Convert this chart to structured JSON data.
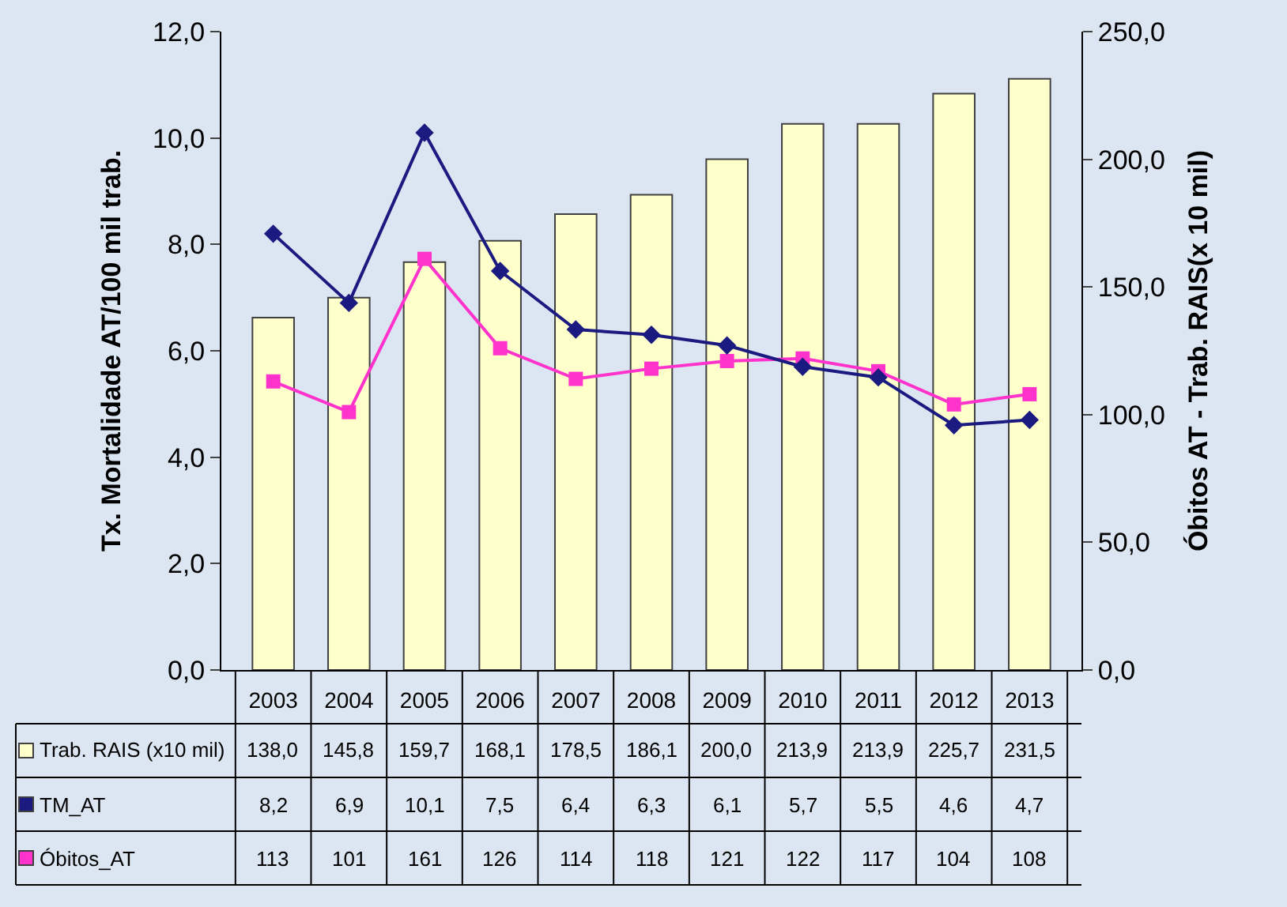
{
  "chart_data": {
    "type": "bar",
    "ylabel": "Tx. Mortalidade AT/100 mil trab.",
    "y2label": "Óbitos AT - Trab. RAIS(x 10 mil)",
    "categories": [
      "2003",
      "2004",
      "2005",
      "2006",
      "2007",
      "2008",
      "2009",
      "2010",
      "2011",
      "2012",
      "2013"
    ],
    "series": [
      {
        "name": "Trab. RAIS (x10 mil)",
        "axis": "y2",
        "color": "#ffffcc",
        "values": [
          138.0,
          145.8,
          159.7,
          168.1,
          178.5,
          186.1,
          200.0,
          213.9,
          213.9,
          225.7,
          231.5
        ],
        "value_labels": [
          "138,0",
          "145,8",
          "159,7",
          "168,1",
          "178,5",
          "186,1",
          "200,0",
          "213,9",
          "213,9",
          "225,7",
          "231,5"
        ]
      },
      {
        "name": "TM_AT",
        "type": "line",
        "color": "#1a1a80",
        "marker": "diamond",
        "values": [
          8.2,
          6.9,
          10.1,
          7.5,
          6.4,
          6.3,
          6.1,
          5.7,
          5.5,
          4.6,
          4.7
        ],
        "value_labels": [
          "8,2",
          "6,9",
          "10,1",
          "7,5",
          "6,4",
          "6,3",
          "6,1",
          "5,7",
          "5,5",
          "4,6",
          "4,7"
        ]
      },
      {
        "name": "Óbitos_AT",
        "type": "line",
        "axis": "y2",
        "color": "#ff33cc",
        "marker": "square",
        "values": [
          113,
          101,
          161,
          126,
          114,
          118,
          121,
          122,
          117,
          104,
          108
        ],
        "value_labels": [
          "113",
          "101",
          "161",
          "126",
          "114",
          "118",
          "121",
          "122",
          "117",
          "104",
          "108"
        ]
      }
    ],
    "ylim": [
      0,
      12
    ],
    "yticks": [
      {
        "value": 0,
        "label": "0,0"
      },
      {
        "value": 2,
        "label": "2,0"
      },
      {
        "value": 4,
        "label": "4,0"
      },
      {
        "value": 6,
        "label": "6,0"
      },
      {
        "value": 8,
        "label": "8,0"
      },
      {
        "value": 10,
        "label": "10,0"
      },
      {
        "value": 12,
        "label": "12,0"
      }
    ],
    "y2lim": [
      0,
      250
    ],
    "y2ticks": [
      {
        "value": 0,
        "label": "0,0"
      },
      {
        "value": 50,
        "label": "50,0"
      },
      {
        "value": 100,
        "label": "100,0"
      },
      {
        "value": 150,
        "label": "150,0"
      },
      {
        "value": 200,
        "label": "200,0"
      },
      {
        "value": 250,
        "label": "250,0"
      }
    ],
    "grid": false,
    "legend": "bottom left"
  }
}
